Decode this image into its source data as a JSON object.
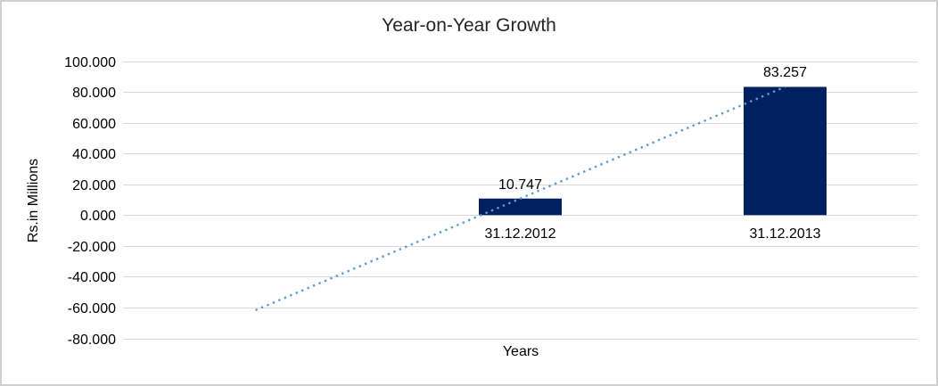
{
  "chart_data": {
    "type": "bar",
    "title": "Year-on-Year Growth",
    "xlabel": "Years",
    "ylabel": "Rs.in Millions",
    "categories": [
      "31.12.2012",
      "31.12.2013"
    ],
    "values": [
      10.747,
      83.257
    ],
    "data_labels": [
      "10.747",
      "83.257"
    ],
    "y_axis": {
      "min": -80,
      "max": 100,
      "step": 20,
      "ticks": [
        100,
        80,
        60,
        40,
        20,
        0,
        -20,
        -40,
        -60,
        -80
      ],
      "tick_labels": [
        "100.000",
        "80.000",
        "60.000",
        "40.000",
        "20.000",
        "0.000",
        "-20.000",
        "-40.000",
        "-60.000",
        "-80.000"
      ]
    },
    "series_color": "#002060",
    "gridline_color": "#D9D9D9",
    "trendline": {
      "type": "linear",
      "style": "dotted",
      "color": "#5B9BD5",
      "backward_forecast_periods": 1,
      "start_value": -61.763,
      "end_value": 83.257
    },
    "legend": "none",
    "grid": "horizontal"
  }
}
